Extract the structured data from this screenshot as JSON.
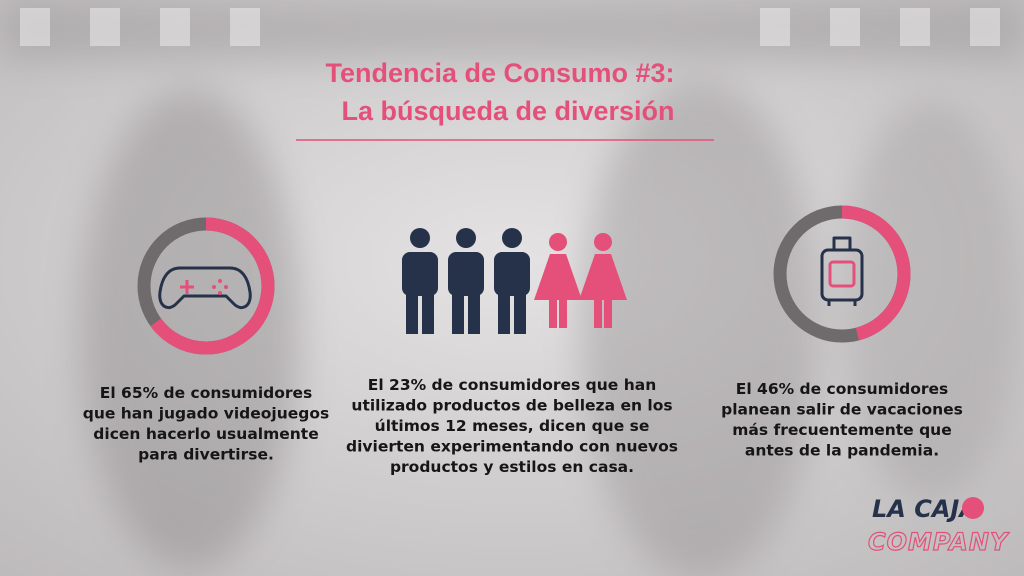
{
  "title": {
    "line1": "Tendencia de Consumo #3:",
    "line2": "La búsqueda de diversión"
  },
  "stats": [
    {
      "percent": 65,
      "text": [
        "El 65% de consumidores",
        "que han jugado videojuegos",
        "dicen hacerlo usualmente",
        "para divertirse."
      ]
    },
    {
      "text": [
        "El 23% de consumidores que han",
        "utilizado productos de belleza en los",
        "últimos 12 meses, dicen que se",
        "divierten experimentando con nuevos",
        "productos y estilos en casa."
      ]
    },
    {
      "percent": 46,
      "text": [
        "El 46% de consumidores",
        "planean salir de vacaciones",
        "más frecuentemente que",
        "antes de la pandemia."
      ]
    }
  ],
  "logo": {
    "top": "LA CAJA",
    "bottom": "COMPANY"
  }
}
